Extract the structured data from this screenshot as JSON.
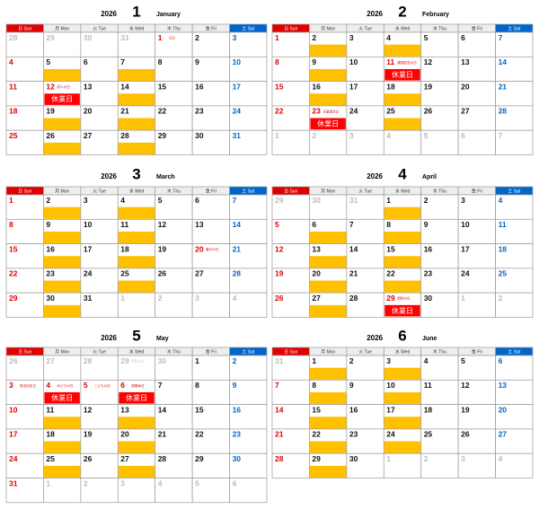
{
  "weekdays": [
    "日 Sun",
    "月 Mon",
    "火 Tue",
    "水 Wed",
    "木 Thu",
    "金 Fri",
    "土 Sat"
  ],
  "closed_label": "休業日",
  "highlight_columns": [
    1,
    3
  ],
  "highlight_color": "#ffc000",
  "months": [
    {
      "year": "2026",
      "number": "1",
      "name": "January",
      "weeks": [
        [
          28,
          29,
          30,
          31,
          {
            "day": 1,
            "note": "元日"
          },
          2,
          3
        ],
        [
          4,
          5,
          6,
          7,
          8,
          9,
          10
        ],
        [
          11,
          {
            "day": 12,
            "note": "成人の日"
          },
          13,
          14,
          15,
          16,
          17
        ],
        [
          18,
          19,
          20,
          21,
          22,
          23,
          24
        ],
        [
          25,
          26,
          27,
          28,
          29,
          30,
          31
        ]
      ]
    },
    {
      "year": "2026",
      "number": "2",
      "name": "February",
      "weeks": [
        [
          1,
          2,
          3,
          4,
          5,
          6,
          7
        ],
        [
          8,
          9,
          10,
          {
            "day": 11,
            "note": "建国記念の日"
          },
          12,
          13,
          14
        ],
        [
          15,
          16,
          17,
          18,
          19,
          20,
          21
        ],
        [
          22,
          {
            "day": 23,
            "note": "天皇誕生日"
          },
          24,
          25,
          26,
          27,
          28
        ],
        [
          1,
          2,
          3,
          4,
          5,
          6,
          7
        ]
      ]
    },
    {
      "year": "2026",
      "number": "3",
      "name": "March",
      "weeks": [
        [
          1,
          2,
          3,
          4,
          5,
          6,
          7
        ],
        [
          8,
          9,
          10,
          11,
          12,
          13,
          14
        ],
        [
          15,
          16,
          17,
          18,
          19,
          {
            "day": 20,
            "note": "春分の日"
          },
          21
        ],
        [
          22,
          23,
          24,
          25,
          26,
          27,
          28
        ],
        [
          29,
          30,
          31,
          1,
          2,
          3,
          4
        ]
      ]
    },
    {
      "year": "2026",
      "number": "4",
      "name": "April",
      "weeks": [
        [
          29,
          30,
          31,
          1,
          2,
          3,
          4
        ],
        [
          5,
          6,
          7,
          8,
          9,
          10,
          11
        ],
        [
          12,
          13,
          14,
          15,
          16,
          17,
          18
        ],
        [
          19,
          20,
          21,
          22,
          23,
          24,
          25
        ],
        [
          26,
          27,
          28,
          {
            "day": 29,
            "note": "昭和の日"
          },
          30,
          1,
          2
        ]
      ]
    },
    {
      "year": "2026",
      "number": "5",
      "name": "May",
      "weeks": [
        [
          26,
          27,
          28,
          {
            "day": 29,
            "note": "昭和の日"
          },
          30,
          1,
          2
        ],
        [
          {
            "day": 3,
            "note": "憲法記念日"
          },
          {
            "day": 4,
            "note": "みどりの日"
          },
          {
            "day": 5,
            "note": "こどもの日"
          },
          {
            "day": 6,
            "note": "振替休日"
          },
          7,
          8,
          9
        ],
        [
          10,
          11,
          12,
          13,
          14,
          15,
          16
        ],
        [
          17,
          18,
          19,
          20,
          21,
          22,
          23
        ],
        [
          24,
          25,
          26,
          27,
          28,
          29,
          30
        ],
        [
          31,
          1,
          2,
          3,
          4,
          5,
          6
        ]
      ]
    },
    {
      "year": "2026",
      "number": "6",
      "name": "June",
      "weeks": [
        [
          31,
          1,
          2,
          3,
          4,
          5,
          6
        ],
        [
          7,
          8,
          9,
          10,
          11,
          12,
          13
        ],
        [
          14,
          15,
          16,
          17,
          18,
          19,
          20
        ],
        [
          21,
          22,
          23,
          24,
          25,
          26,
          27
        ],
        [
          28,
          29,
          30,
          1,
          2,
          3,
          4
        ]
      ]
    }
  ]
}
